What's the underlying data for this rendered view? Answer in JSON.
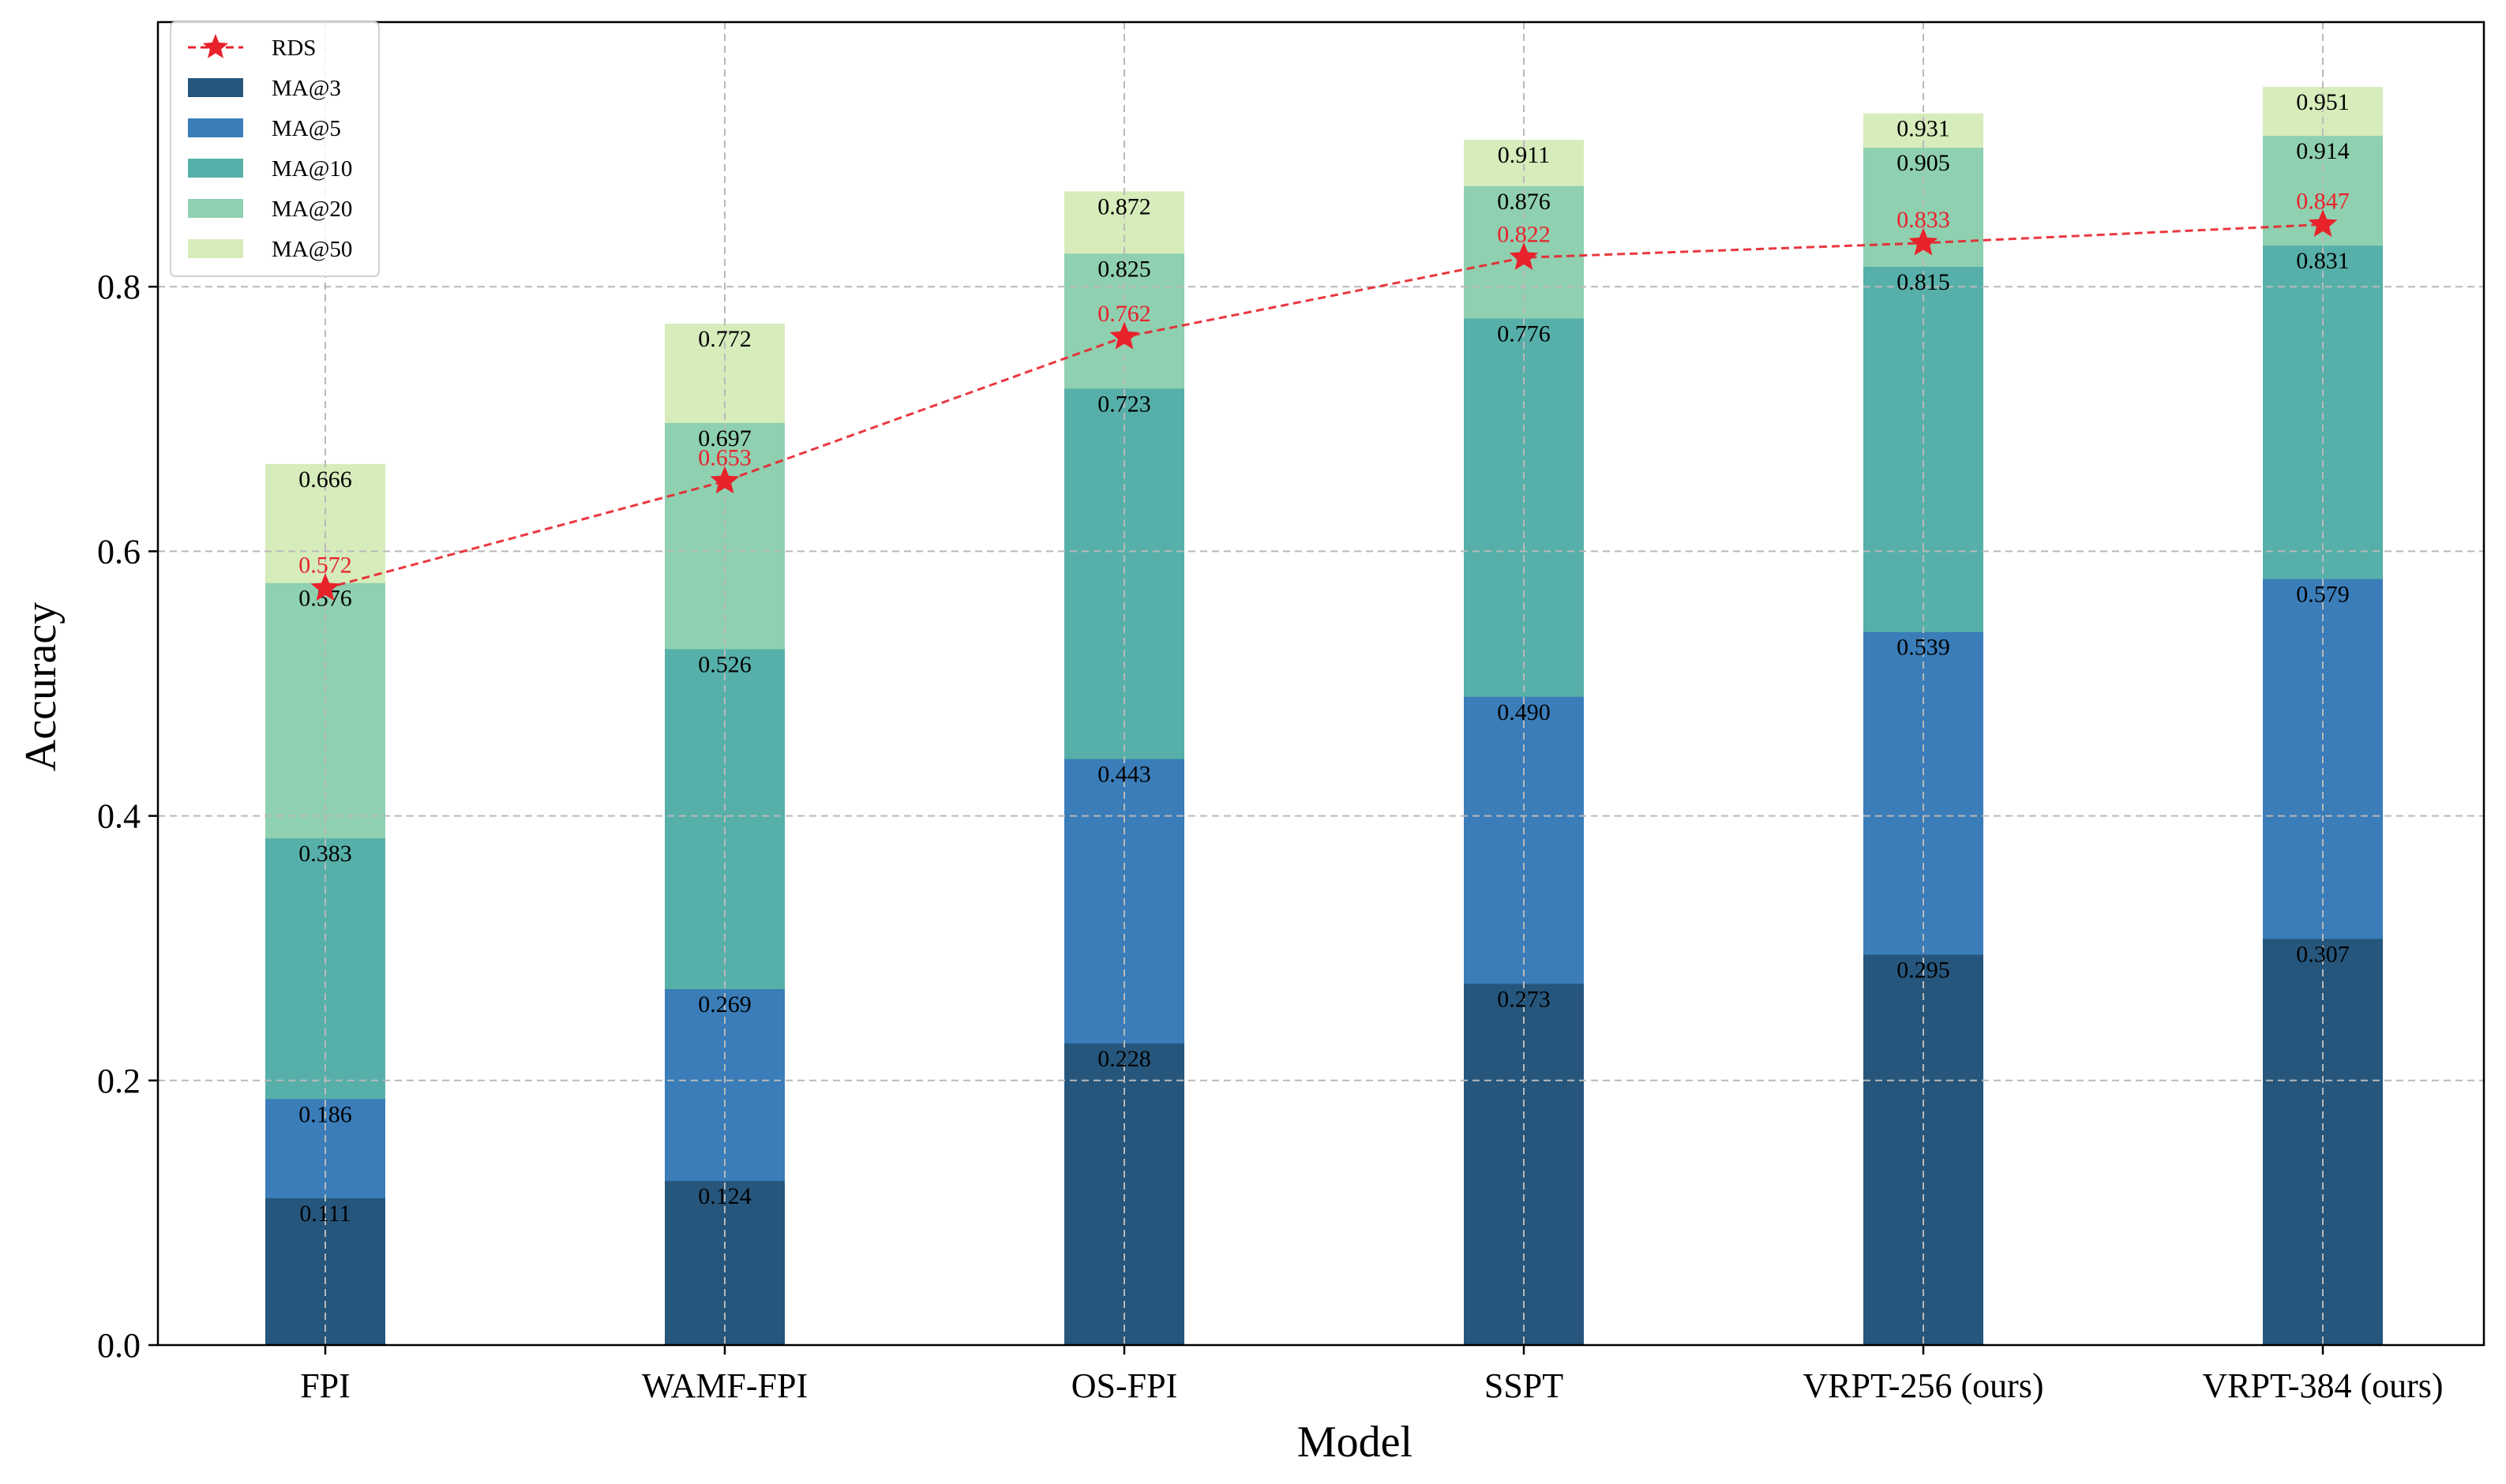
{
  "chart_data": {
    "type": "bar",
    "subtype": "stacked-overlay-with-line",
    "title": "",
    "xlabel": "Model",
    "ylabel": "Accuracy",
    "ylim": [
      0,
      1.0
    ],
    "yticks": [
      "0.0",
      "0.2",
      "0.4",
      "0.6",
      "0.8"
    ],
    "grid": true,
    "legend_position": "top-left",
    "categories": [
      "FPI",
      "WAMF-FPI",
      "OS-FPI",
      "SSPT",
      "VRPT-256 (ours)",
      "VRPT-384 (ours)"
    ],
    "series": [
      {
        "name": "MA@3",
        "color": "#26567c",
        "values": [
          0.111,
          0.124,
          0.228,
          0.273,
          0.295,
          0.307
        ],
        "labels": [
          "0.111",
          "0.124",
          "0.228",
          "0.273",
          "0.295",
          "0.307"
        ]
      },
      {
        "name": "MA@5",
        "color": "#3a7db9",
        "values": [
          0.186,
          0.269,
          0.443,
          0.49,
          0.539,
          0.579
        ],
        "labels": [
          "0.186",
          "0.269",
          "0.443",
          "0.490",
          "0.539",
          "0.579"
        ]
      },
      {
        "name": "MA@10",
        "color": "#56b0a9",
        "values": [
          0.383,
          0.526,
          0.723,
          0.776,
          0.815,
          0.831
        ],
        "labels": [
          "0.383",
          "0.526",
          "0.723",
          "0.776",
          "0.815",
          "0.831"
        ]
      },
      {
        "name": "MA@20",
        "color": "#8fd0b0",
        "values": [
          0.576,
          0.697,
          0.825,
          0.876,
          0.905,
          0.914
        ],
        "labels": [
          "0.576",
          "0.697",
          "0.825",
          "0.876",
          "0.905",
          "0.914"
        ]
      },
      {
        "name": "MA@50",
        "color": "#d6ecbb",
        "values": [
          0.666,
          0.772,
          0.872,
          0.911,
          0.931,
          0.951
        ],
        "labels": [
          "0.666",
          "0.772",
          "0.872",
          "0.911",
          "0.931",
          "0.951"
        ]
      }
    ],
    "line_series": {
      "name": "RDS",
      "color": "#e8222b",
      "marker": "star",
      "linestyle": "dashed",
      "values": [
        0.572,
        0.653,
        0.762,
        0.822,
        0.833,
        0.847
      ],
      "labels": [
        "0.572",
        "0.653",
        "0.762",
        "0.822",
        "0.833",
        "0.847"
      ]
    }
  }
}
